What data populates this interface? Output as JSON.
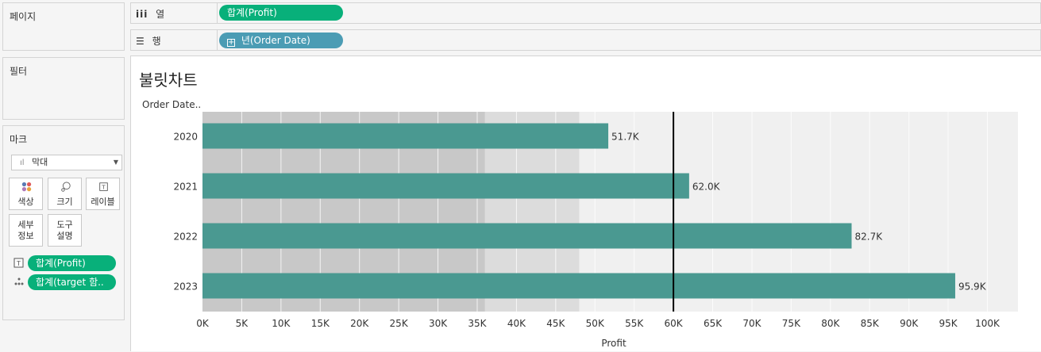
{
  "panels": {
    "pages_title": "페이지",
    "filters_title": "필터",
    "marks_title": "마크",
    "mark_type": "막대",
    "buttons": {
      "color": "색상",
      "size": "크기",
      "label": "레이블",
      "detail_line1": "세부",
      "detail_line2": "정보",
      "tooltip_line1": "도구",
      "tooltip_line2": "설명"
    },
    "mark_fields": [
      "합계(Profit)",
      "합계(target 함.."
    ]
  },
  "shelves": {
    "columns_label": "열",
    "columns_pill": "합계(Profit)",
    "rows_label": "행",
    "rows_pill": "년(Order Date)"
  },
  "sheet": {
    "title": "불릿차트"
  },
  "chart_data": {
    "type": "bar",
    "orientation": "horizontal",
    "row_header": "Order Date..",
    "categories": [
      "2020",
      "2021",
      "2022",
      "2023"
    ],
    "series": [
      {
        "name": "합계(Profit)",
        "values": [
          51.7,
          62.0,
          82.7,
          95.9
        ],
        "labels": [
          "51.7K",
          "62.0K",
          "82.7K",
          "95.9K"
        ],
        "color": "#4a9991"
      }
    ],
    "reference_line": 60,
    "bands": [
      {
        "from": 0,
        "to": 36,
        "color": "#c8c8c8"
      },
      {
        "from": 36,
        "to": 48,
        "color": "#dcdcdc"
      },
      {
        "from": 48,
        "to": 104,
        "color": "#f0f0f0"
      }
    ],
    "xlabel": "Profit",
    "xlim": [
      0,
      100
    ],
    "x_ticks": [
      "0K",
      "5K",
      "10K",
      "15K",
      "20K",
      "25K",
      "30K",
      "35K",
      "40K",
      "45K",
      "50K",
      "55K",
      "60K",
      "65K",
      "70K",
      "75K",
      "80K",
      "85K",
      "90K",
      "95K",
      "100K"
    ],
    "x_tick_values": [
      0,
      5,
      10,
      15,
      20,
      25,
      30,
      35,
      40,
      45,
      50,
      55,
      60,
      65,
      70,
      75,
      80,
      85,
      90,
      95,
      100
    ],
    "gridlines": true
  }
}
